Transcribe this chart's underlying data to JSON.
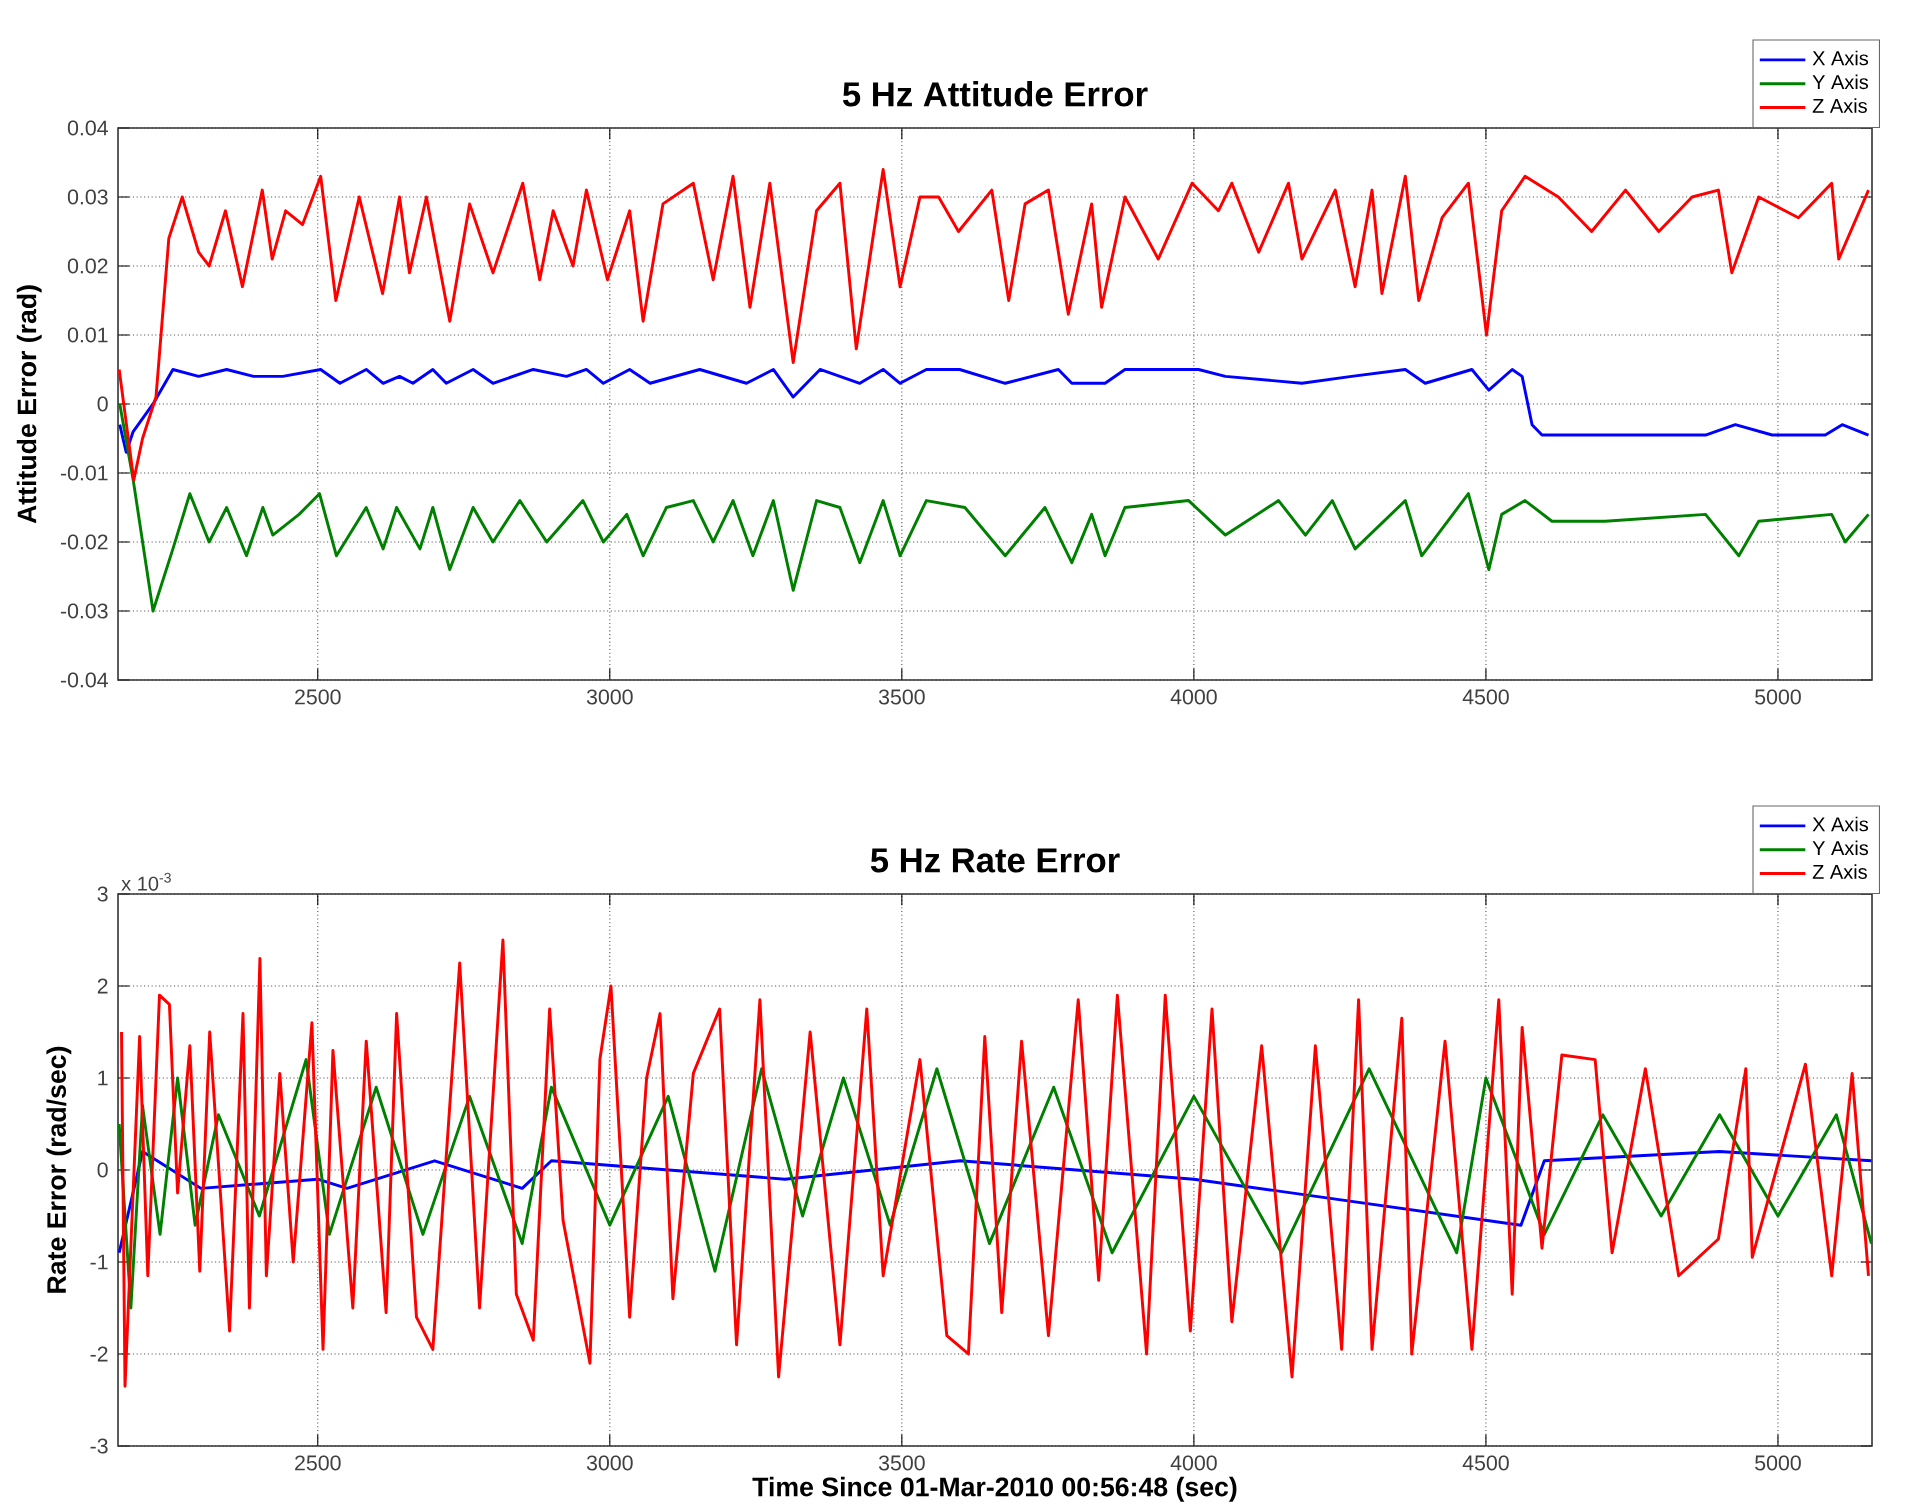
{
  "chart_data": [
    {
      "type": "line",
      "title": "5 Hz Attitude Error",
      "ylabel": "Attitude Error (rad)",
      "xlim": [
        2158,
        5161
      ],
      "ylim": [
        -0.04,
        0.04
      ],
      "xticks": [
        2500,
        3000,
        3500,
        4000,
        4500,
        5000
      ],
      "yticks": [
        -0.04,
        -0.03,
        -0.02,
        -0.01,
        0,
        0.01,
        0.02,
        0.03,
        0.04
      ],
      "grid": true,
      "legend": "top right",
      "line_style": "solid",
      "series": [
        {
          "name": "X Axis",
          "color": "#0000ff",
          "x": [
            2161,
            2172,
            2184,
            2218,
            2252,
            2296,
            2344,
            2390,
            2440,
            2505,
            2538,
            2583,
            2612,
            2640,
            2663,
            2697,
            2720,
            2766,
            2800,
            2869,
            2926,
            2960,
            2989,
            3034,
            3069,
            3154,
            3234,
            3280,
            3314,
            3360,
            3428,
            3468,
            3497,
            3542,
            3599,
            3677,
            3768,
            3791,
            3848,
            3882,
            4008,
            4054,
            4185,
            4270,
            4362,
            4396,
            4476,
            4505,
            4545,
            4562,
            4579,
            4596,
            4704,
            4876,
            4927,
            4990,
            5081,
            5110,
            5155
          ],
          "values": [
            -0.003,
            -0.007,
            -0.004,
            0,
            0.005,
            0.004,
            0.005,
            0.004,
            0.004,
            0.005,
            0.003,
            0.005,
            0.003,
            0.004,
            0.003,
            0.005,
            0.003,
            0.005,
            0.003,
            0.005,
            0.004,
            0.005,
            0.003,
            0.005,
            0.003,
            0.005,
            0.003,
            0.005,
            0.001,
            0.005,
            0.003,
            0.005,
            0.003,
            0.005,
            0.005,
            0.003,
            0.005,
            0.003,
            0.003,
            0.005,
            0.005,
            0.004,
            0.003,
            0.004,
            0.005,
            0.003,
            0.005,
            0.002,
            0.005,
            0.004,
            -0.003,
            -0.0045,
            -0.0045,
            -0.0045,
            -0.003,
            -0.0045,
            -0.0045,
            -0.003,
            -0.0045
          ]
        },
        {
          "name": "Y Axis",
          "color": "#008000",
          "x": [
            2161,
            2184,
            2218,
            2252,
            2281,
            2314,
            2344,
            2378,
            2406,
            2423,
            2468,
            2503,
            2532,
            2583,
            2612,
            2635,
            2675,
            2697,
            2726,
            2766,
            2800,
            2846,
            2892,
            2954,
            2989,
            3029,
            3057,
            3097,
            3143,
            3177,
            3211,
            3245,
            3280,
            3314,
            3354,
            3394,
            3428,
            3468,
            3497,
            3542,
            3608,
            3677,
            3745,
            3791,
            3825,
            3848,
            3882,
            3991,
            4054,
            4145,
            4191,
            4237,
            4276,
            4362,
            4390,
            4470,
            4505,
            4527,
            4567,
            4613,
            4704,
            4876,
            4933,
            4967,
            5092,
            5115,
            5155
          ],
          "values": [
            0,
            -0.011,
            -0.03,
            -0.021,
            -0.013,
            -0.02,
            -0.015,
            -0.022,
            -0.015,
            -0.019,
            -0.016,
            -0.013,
            -0.022,
            -0.015,
            -0.021,
            -0.015,
            -0.021,
            -0.015,
            -0.024,
            -0.015,
            -0.02,
            -0.014,
            -0.02,
            -0.014,
            -0.02,
            -0.016,
            -0.022,
            -0.015,
            -0.014,
            -0.02,
            -0.014,
            -0.022,
            -0.014,
            -0.027,
            -0.014,
            -0.015,
            -0.023,
            -0.014,
            -0.022,
            -0.014,
            -0.015,
            -0.022,
            -0.015,
            -0.023,
            -0.016,
            -0.022,
            -0.015,
            -0.014,
            -0.019,
            -0.014,
            -0.019,
            -0.014,
            -0.021,
            -0.014,
            -0.022,
            -0.013,
            -0.024,
            -0.016,
            -0.014,
            -0.017,
            -0.017,
            -0.016,
            -0.022,
            -0.017,
            -0.016,
            -0.02,
            -0.016
          ]
        },
        {
          "name": "Z Axis",
          "color": "#ff0000",
          "x": [
            2160,
            2185,
            2200,
            2223,
            2245,
            2268,
            2296,
            2314,
            2342,
            2371,
            2405,
            2422,
            2445,
            2474,
            2505,
            2531,
            2571,
            2611,
            2640,
            2657,
            2686,
            2726,
            2760,
            2800,
            2851,
            2880,
            2903,
            2937,
            2960,
            2996,
            3034,
            3057,
            3091,
            3143,
            3177,
            3211,
            3240,
            3274,
            3314,
            3354,
            3394,
            3422,
            3468,
            3497,
            3531,
            3563,
            3597,
            3654,
            3683,
            3711,
            3751,
            3785,
            3825,
            3842,
            3882,
            3939,
            3997,
            4042,
            4065,
            4111,
            4162,
            4185,
            4242,
            4276,
            4305,
            4322,
            4362,
            4385,
            4425,
            4470,
            4501,
            4527,
            4567,
            4624,
            4681,
            4739,
            4796,
            4853,
            4898,
            4921,
            4967,
            5035,
            5092,
            5104,
            5155
          ],
          "values": [
            0.005,
            -0.011,
            -0.005,
            0.001,
            0.024,
            0.03,
            0.022,
            0.02,
            0.028,
            0.017,
            0.031,
            0.021,
            0.028,
            0.026,
            0.033,
            0.015,
            0.03,
            0.016,
            0.03,
            0.019,
            0.03,
            0.012,
            0.029,
            0.019,
            0.032,
            0.018,
            0.028,
            0.02,
            0.031,
            0.018,
            0.028,
            0.012,
            0.029,
            0.032,
            0.018,
            0.033,
            0.014,
            0.032,
            0.006,
            0.028,
            0.032,
            0.008,
            0.034,
            0.017,
            0.03,
            0.03,
            0.025,
            0.031,
            0.015,
            0.029,
            0.031,
            0.013,
            0.029,
            0.014,
            0.03,
            0.021,
            0.032,
            0.028,
            0.032,
            0.022,
            0.032,
            0.021,
            0.031,
            0.017,
            0.031,
            0.016,
            0.033,
            0.015,
            0.027,
            0.032,
            0.01,
            0.028,
            0.033,
            0.03,
            0.025,
            0.031,
            0.025,
            0.03,
            0.031,
            0.019,
            0.03,
            0.027,
            0.032,
            0.021,
            0.031
          ]
        }
      ]
    },
    {
      "type": "line",
      "title": "5 Hz Rate Error",
      "ylabel": "Rate Error (rad/sec)",
      "xlabel": "Time Since 01-Mar-2010 00:56:48 (sec)",
      "annotations": [
        "x 10$^{-3}$"
      ],
      "xlim": [
        2158,
        5161
      ],
      "ylim": [
        -3,
        3
      ],
      "xticks": [
        2500,
        3000,
        3500,
        4000,
        4500,
        5000
      ],
      "yticks": [
        -3,
        -2,
        -1,
        0,
        1,
        2,
        3
      ],
      "grid": true,
      "legend": "top right",
      "line_style": "solid",
      "series": [
        {
          "name": "X Axis",
          "color": "#0000ff",
          "x": [
            2160,
            2200,
            2300,
            2500,
            2550,
            2700,
            2850,
            2900,
            3300,
            3600,
            4000,
            4560,
            4600,
            4900,
            5160
          ],
          "values": [
            -0.9,
            0.2,
            -0.2,
            -0.1,
            -0.2,
            0.1,
            -0.2,
            0.1,
            -0.1,
            0.1,
            -0.1,
            -0.6,
            0.1,
            0.2,
            0.1
          ]
        },
        {
          "name": "Y Axis",
          "color": "#008000",
          "x": [
            2160,
            2180,
            2200,
            2230,
            2260,
            2290,
            2330,
            2400,
            2480,
            2520,
            2600,
            2680,
            2760,
            2850,
            2900,
            3000,
            3100,
            3180,
            3260,
            3330,
            3400,
            3480,
            3560,
            3650,
            3760,
            3860,
            4000,
            4150,
            4300,
            4450,
            4500,
            4600,
            4700,
            4800,
            4900,
            5000,
            5100,
            5160
          ],
          "values": [
            0.5,
            -1.5,
            0.7,
            -0.7,
            1.0,
            -0.6,
            0.6,
            -0.5,
            1.2,
            -0.7,
            0.9,
            -0.7,
            0.8,
            -0.8,
            0.9,
            -0.6,
            0.8,
            -1.1,
            1.1,
            -0.5,
            1.0,
            -0.6,
            1.1,
            -0.8,
            0.9,
            -0.9,
            0.8,
            -0.9,
            1.1,
            -0.9,
            1.0,
            -0.7,
            0.6,
            -0.5,
            0.6,
            -0.5,
            0.6,
            -0.8
          ]
        },
        {
          "name": "Z Axis",
          "color": "#ff0000",
          "x": [
            2164,
            2170,
            2195,
            2209,
            2229,
            2246,
            2260,
            2281,
            2298,
            2315,
            2349,
            2372,
            2383,
            2401,
            2412,
            2435,
            2458,
            2490,
            2509,
            2526,
            2560,
            2583,
            2617,
            2635,
            2669,
            2697,
            2743,
            2777,
            2817,
            2840,
            2869,
            2897,
            2920,
            2966,
            2983,
            3002,
            3034,
            3063,
            3086,
            3108,
            3143,
            3188,
            3217,
            3257,
            3289,
            3343,
            3394,
            3440,
            3468,
            3531,
            3577,
            3614,
            3642,
            3671,
            3705,
            3751,
            3802,
            3837,
            3869,
            3919,
            3951,
            3994,
            4031,
            4065,
            4116,
            4168,
            4208,
            4253,
            4282,
            4305,
            4356,
            4373,
            4430,
            4476,
            4522,
            4545,
            4562,
            4596,
            4630,
            4687,
            4716,
            4773,
            4830,
            4898,
            4945,
            4956,
            5047,
            5092,
            5127,
            5155
          ],
          "values": [
            1.5,
            -2.35,
            1.45,
            -1.15,
            1.9,
            1.8,
            -0.25,
            1.35,
            -1.1,
            1.5,
            -1.75,
            1.7,
            -1.5,
            2.3,
            -1.15,
            1.05,
            -1.0,
            1.6,
            -1.95,
            1.3,
            -1.5,
            1.4,
            -1.55,
            1.7,
            -1.6,
            -1.95,
            2.25,
            -1.5,
            2.5,
            -1.35,
            -1.85,
            1.75,
            -0.55,
            -2.1,
            1.2,
            2.0,
            -1.6,
            1.0,
            1.7,
            -1.4,
            1.05,
            1.75,
            -1.9,
            1.85,
            -2.25,
            1.5,
            -1.9,
            1.75,
            -1.15,
            1.2,
            -1.8,
            -2.0,
            1.45,
            -1.55,
            1.4,
            -1.8,
            1.85,
            -1.2,
            1.9,
            -2.0,
            1.9,
            -1.75,
            1.75,
            -1.65,
            1.35,
            -2.25,
            1.35,
            -1.95,
            1.85,
            -1.95,
            1.65,
            -2.0,
            1.4,
            -1.95,
            1.85,
            -1.35,
            1.55,
            -0.85,
            1.25,
            1.2,
            -0.9,
            1.1,
            -1.15,
            -0.75,
            1.1,
            -0.95,
            1.15,
            -1.15,
            1.05,
            -1.15
          ]
        }
      ]
    }
  ]
}
